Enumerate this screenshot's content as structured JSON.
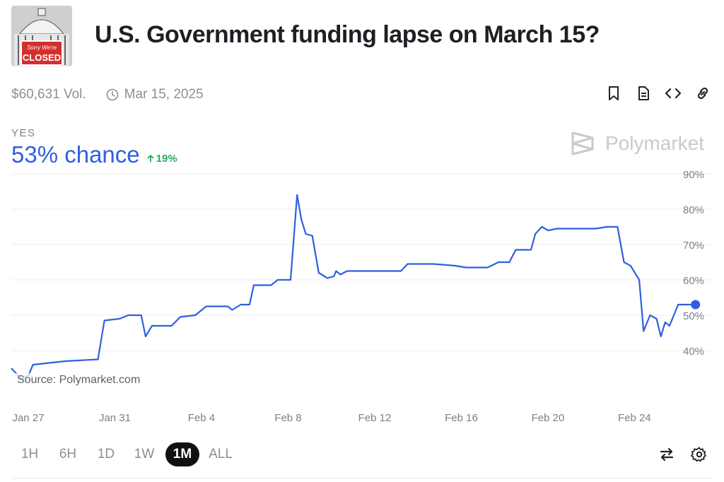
{
  "thumbnail": {
    "sign_line1": "Sorry We're",
    "sign_line2": "CLOSED"
  },
  "title": "U.S. Government funding lapse on March 15?",
  "meta": {
    "volume": "$60,631 Vol.",
    "date": "Mar 15, 2025"
  },
  "outcome": {
    "label": "YES",
    "chance": "53% chance",
    "delta": "19%"
  },
  "brand": "Polymarket",
  "source": "Source: Polymarket.com",
  "colors": {
    "line": "#2f5fe0",
    "delta": "#27ae60",
    "active_tab": "#111111"
  },
  "range_tabs": [
    {
      "label": "1H",
      "active": false
    },
    {
      "label": "6H",
      "active": false
    },
    {
      "label": "1D",
      "active": false
    },
    {
      "label": "1W",
      "active": false
    },
    {
      "label": "1M",
      "active": true
    },
    {
      "label": "ALL",
      "active": false
    }
  ],
  "icons": {
    "header": [
      "bookmark-icon",
      "document-icon",
      "embed-code-icon",
      "link-icon"
    ],
    "footer": [
      "swap-arrows-icon",
      "settings-gear-icon"
    ]
  },
  "chart_data": {
    "type": "line",
    "x_unit": "days",
    "x_ticks": [
      {
        "label": "Jan 27",
        "x": 0
      },
      {
        "label": "Jan 31",
        "x": 4
      },
      {
        "label": "Feb 4",
        "x": 8
      },
      {
        "label": "Feb 8",
        "x": 12
      },
      {
        "label": "Feb 12",
        "x": 16
      },
      {
        "label": "Feb 16",
        "x": 20
      },
      {
        "label": "Feb 20",
        "x": 24
      },
      {
        "label": "Feb 24",
        "x": 28
      }
    ],
    "y_ticks": [
      {
        "label": "40%",
        "value": 40
      },
      {
        "label": "50%",
        "value": 50
      },
      {
        "label": "60%",
        "value": 60
      },
      {
        "label": "70%",
        "value": 70
      },
      {
        "label": "80%",
        "value": 80
      },
      {
        "label": "90%",
        "value": 90
      }
    ],
    "ylim": [
      30,
      90
    ],
    "xlim": [
      0,
      30.5
    ],
    "grid": true,
    "series": [
      {
        "points": [
          [
            0,
            35
          ],
          [
            0.3,
            33
          ],
          [
            0.5,
            32
          ],
          [
            0.8,
            33
          ],
          [
            1.0,
            36
          ],
          [
            2.5,
            37
          ],
          [
            4.0,
            37.5
          ],
          [
            4.3,
            48.5
          ],
          [
            5.0,
            49
          ],
          [
            5.4,
            50
          ],
          [
            6.0,
            50
          ],
          [
            6.2,
            44
          ],
          [
            6.5,
            47
          ],
          [
            7.4,
            47
          ],
          [
            7.8,
            49.5
          ],
          [
            8.5,
            50
          ],
          [
            9.0,
            52.5
          ],
          [
            10.0,
            52.5
          ],
          [
            10.2,
            51.5
          ],
          [
            10.6,
            53
          ],
          [
            11.0,
            53
          ],
          [
            11.2,
            58.5
          ],
          [
            12.0,
            58.5
          ],
          [
            12.3,
            60
          ],
          [
            12.9,
            60
          ],
          [
            13.2,
            84
          ],
          [
            13.4,
            77
          ],
          [
            13.6,
            73
          ],
          [
            13.9,
            72.5
          ],
          [
            14.2,
            62
          ],
          [
            14.6,
            60.5
          ],
          [
            14.9,
            61
          ],
          [
            15.0,
            62.5
          ],
          [
            15.2,
            61.5
          ],
          [
            15.5,
            62.5
          ],
          [
            16.0,
            62.5
          ],
          [
            17.0,
            62.5
          ],
          [
            18.0,
            62.5
          ],
          [
            18.3,
            64.5
          ],
          [
            19.5,
            64.5
          ],
          [
            20.5,
            64
          ],
          [
            21.0,
            63.5
          ],
          [
            22.0,
            63.5
          ],
          [
            22.5,
            65
          ],
          [
            23.0,
            65
          ],
          [
            23.3,
            68.5
          ],
          [
            24.0,
            68.5
          ],
          [
            24.2,
            73
          ],
          [
            24.5,
            75
          ],
          [
            24.8,
            74
          ],
          [
            25.2,
            74.5
          ],
          [
            26.0,
            74.5
          ],
          [
            27.0,
            74.5
          ],
          [
            27.5,
            75
          ],
          [
            28.0,
            75
          ],
          [
            28.3,
            65
          ],
          [
            28.6,
            64
          ],
          [
            29.0,
            60
          ],
          [
            29.2,
            45.5
          ],
          [
            29.5,
            50
          ],
          [
            29.8,
            49
          ],
          [
            30.0,
            44
          ],
          [
            30.2,
            48
          ],
          [
            30.4,
            47
          ],
          [
            30.8,
            53
          ],
          [
            31.2,
            53
          ],
          [
            31.6,
            53
          ]
        ]
      }
    ],
    "last_value": 53
  }
}
